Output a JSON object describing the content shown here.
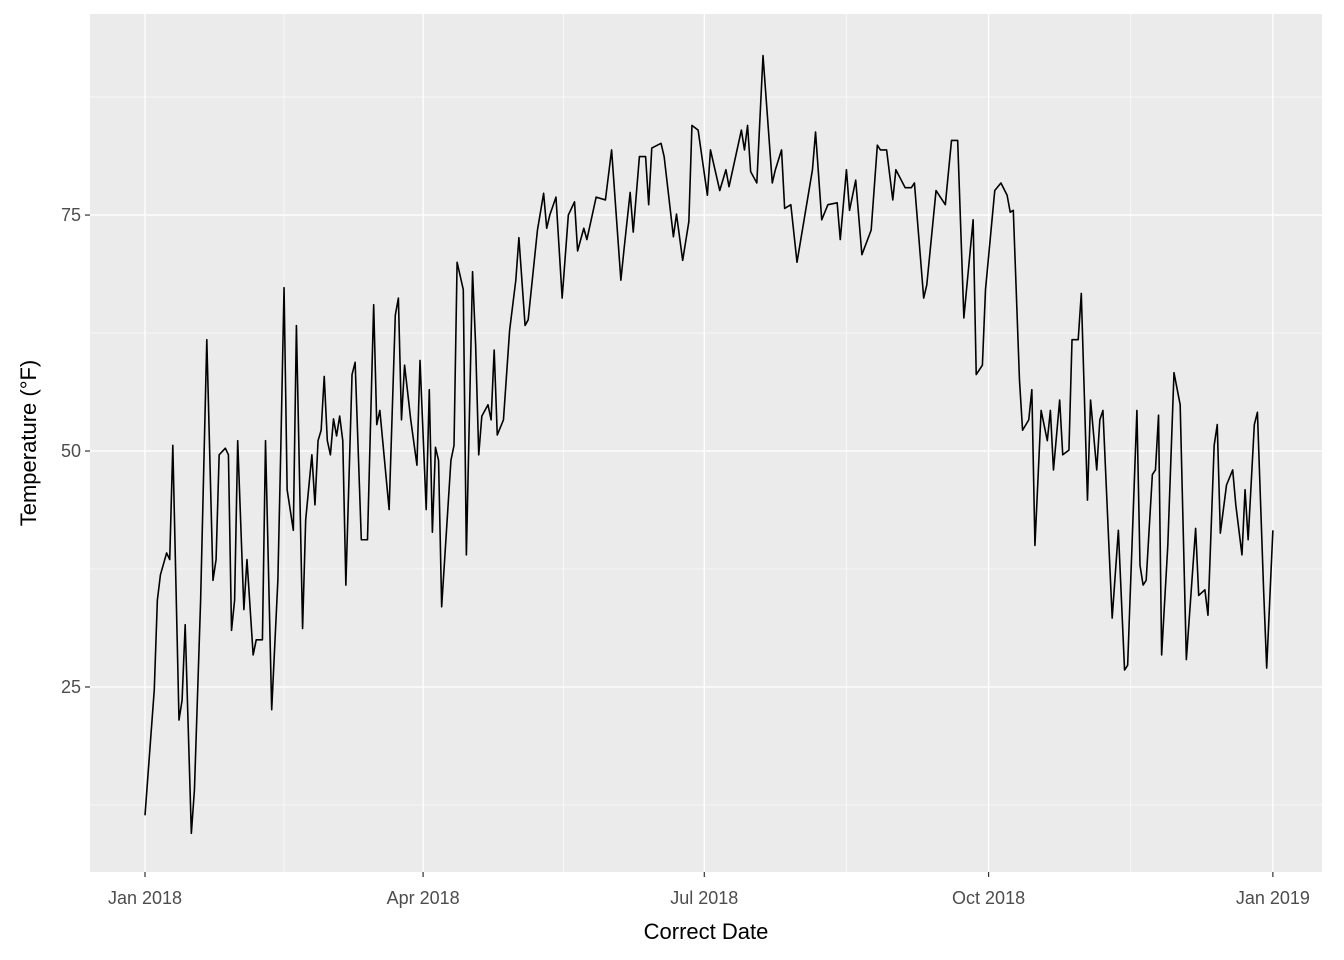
{
  "chart_data": {
    "type": "line",
    "xlabel": "Correct Date",
    "ylabel": "Temperature (°F)",
    "x": [
      0,
      3,
      4,
      5,
      7,
      8,
      9,
      11,
      12,
      13,
      15,
      16,
      18,
      20,
      22,
      23,
      24,
      26,
      27,
      28,
      29,
      30,
      32,
      33,
      35,
      36,
      38,
      39,
      41,
      43,
      44,
      45,
      46,
      48,
      49,
      51,
      52,
      54,
      55,
      56,
      57,
      58,
      59,
      60,
      61,
      62,
      63,
      64,
      65,
      67,
      68,
      70,
      72,
      74,
      75,
      76,
      79,
      81,
      82,
      83,
      84,
      86,
      88,
      89,
      91,
      92,
      93,
      94,
      95,
      96,
      99,
      100,
      101,
      103,
      104,
      106,
      107,
      108,
      109,
      111,
      112,
      113,
      114,
      116,
      118,
      120,
      121,
      123,
      124,
      127,
      129,
      130,
      131,
      133,
      135,
      137,
      139,
      140,
      142,
      143,
      146,
      149,
      151,
      154,
      155,
      157,
      158,
      160,
      162,
      163,
      164,
      167,
      168,
      171,
      172,
      174,
      176,
      177,
      179,
      182,
      183,
      186,
      188,
      189,
      193,
      194,
      195,
      196,
      198,
      200,
      203,
      204,
      206,
      207,
      209,
      211,
      216,
      217,
      219,
      221,
      224,
      225,
      227,
      228,
      230,
      232,
      235,
      237,
      238,
      240,
      242,
      243,
      246,
      248,
      249,
      252,
      253,
      256,
      259,
      261,
      263,
      265,
      268,
      269,
      271,
      272,
      275,
      277,
      279,
      280,
      281,
      283,
      284,
      286,
      287,
      288,
      290,
      292,
      293,
      294,
      296,
      297,
      299,
      300,
      302,
      303,
      305,
      306,
      308,
      309,
      310,
      312,
      313,
      315,
      317,
      318,
      321,
      322,
      323,
      324,
      326,
      327,
      328,
      329,
      331,
      333,
      335,
      337,
      340,
      341,
      343,
      344,
      346,
      347,
      348,
      350,
      352,
      353,
      355,
      356,
      357,
      359,
      360,
      362,
      363,
      365
    ],
    "values": [
      11.4,
      24.7,
      34.2,
      36.9,
      39.2,
      38.5,
      50.6,
      21.5,
      23.6,
      31.6,
      9.5,
      14.1,
      34.2,
      61.8,
      36.3,
      38.5,
      49.6,
      50.3,
      49.6,
      31.0,
      34.2,
      51.1,
      33.2,
      38.5,
      28.4,
      30.0,
      30.0,
      51.1,
      22.6,
      36.3,
      51.1,
      67.3,
      45.9,
      41.6,
      63.3,
      31.2,
      42.7,
      49.6,
      44.3,
      51.1,
      52.2,
      57.9,
      51.1,
      49.6,
      53.4,
      51.6,
      53.7,
      51.1,
      35.8,
      58.1,
      59.4,
      40.6,
      40.6,
      65.5,
      52.8,
      54.3,
      43.8,
      64.4,
      66.2,
      53.3,
      59.1,
      53.3,
      48.5,
      59.6,
      43.8,
      56.5,
      41.4,
      50.4,
      49.0,
      33.5,
      49.0,
      50.6,
      70.0,
      67.1,
      39.0,
      69.0,
      61.2,
      49.6,
      53.7,
      54.9,
      53.3,
      60.7,
      51.7,
      53.3,
      62.8,
      68.1,
      72.6,
      63.3,
      63.9,
      73.4,
      77.3,
      73.6,
      75.0,
      76.9,
      66.2,
      75.0,
      76.4,
      71.2,
      73.6,
      72.4,
      76.9,
      76.6,
      81.9,
      68.1,
      71.3,
      77.4,
      73.2,
      81.2,
      81.2,
      76.1,
      82.1,
      82.6,
      81.2,
      72.7,
      75.1,
      70.2,
      74.3,
      84.5,
      84.0,
      77.1,
      81.9,
      77.6,
      79.8,
      78.0,
      84.0,
      81.9,
      84.5,
      79.6,
      78.4,
      91.9,
      78.4,
      79.8,
      81.9,
      75.7,
      76.1,
      70.0,
      79.8,
      83.8,
      74.5,
      76.1,
      76.3,
      72.4,
      79.8,
      75.5,
      78.7,
      70.8,
      73.4,
      82.4,
      81.9,
      81.9,
      76.6,
      79.8,
      77.9,
      77.9,
      78.4,
      66.2,
      67.6,
      77.6,
      76.1,
      82.9,
      82.9,
      64.1,
      74.5,
      58.1,
      59.1,
      67.1,
      77.6,
      78.4,
      77.1,
      75.3,
      75.5,
      57.5,
      52.2,
      53.3,
      56.5,
      40.0,
      54.3,
      51.1,
      54.3,
      48.0,
      55.4,
      49.6,
      50.1,
      61.8,
      61.8,
      66.7,
      44.8,
      55.4,
      48.0,
      53.3,
      54.3,
      39.5,
      32.3,
      41.6,
      26.8,
      27.3,
      54.3,
      37.9,
      35.8,
      36.3,
      47.5,
      48.0,
      53.8,
      28.4,
      40.0,
      58.3,
      54.9,
      27.9,
      41.8,
      34.7,
      35.3,
      32.6,
      50.6,
      52.8,
      41.3,
      46.4,
      48.0,
      44.3,
      39.0,
      45.9,
      40.6,
      52.8,
      54.1,
      35.3,
      27.0,
      41.6
    ],
    "color": "#000000",
    "xlim": [
      -17.8,
      380.9
    ],
    "ylim": [
      5.4,
      96.3
    ],
    "xticks": [
      {
        "value": 0,
        "label": "Jan 2018"
      },
      {
        "value": 90,
        "label": "Apr 2018"
      },
      {
        "value": 181,
        "label": "Jul 2018"
      },
      {
        "value": 273,
        "label": "Oct 2018"
      },
      {
        "value": 365,
        "label": "Jan 2019"
      }
    ],
    "yticks": [
      25,
      50,
      75
    ],
    "grid": true
  }
}
